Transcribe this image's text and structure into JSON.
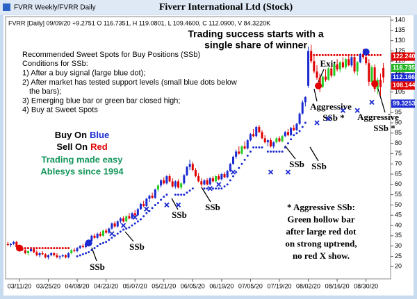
{
  "window_title": "FVRR Weekly/FVRR Daily",
  "chart_data": {
    "type": "candlestick",
    "title": "Fiverr International Ltd (Stock)",
    "info": "FVRR [Daily] 09/09/20 +9.2751 O 116.7351, H 119.0801, L 109.4600, C 112.0900, V 84.3220K",
    "headline": [
      "Trading success starts with a",
      "single share of winner"
    ],
    "conditions": [
      "Recommended Sweet Spots for Buy Positions (SSb)",
      "Conditions for SSb:",
      "1) After a buy signal (large blue dot);",
      "2) After market has tested support levels (small blue dots below",
      "the bars);",
      "3) Emerging blue bar or green bar closed high;",
      "4) Buy at Sweet Spots"
    ],
    "slogan": {
      "buy": "Buy On",
      "buy_word": "Blue",
      "sell": "Sell On",
      "sell_word": "Red",
      "lines": [
        "Trading made easy",
        "Ablesys since 1994"
      ]
    },
    "annotations": [
      "SSb",
      "SSb",
      "SSb",
      "SSb",
      "SSb",
      "SSb",
      "Exit",
      "Aggressive",
      "SSb *",
      "Aggressive",
      "SSb *"
    ],
    "note": [
      "* Aggressive SSb:",
      "Green hollow bar",
      "after large red dot",
      "on strong uptrend,",
      "no red X show."
    ],
    "up_color": "#1a2ad0",
    "down_color": "#e00000",
    "highlight_color": "#22cc22",
    "green_bars": [
      7,
      22,
      33,
      41,
      52,
      60,
      72,
      81,
      93,
      95,
      109,
      111,
      113,
      115,
      117,
      121,
      126,
      128
    ],
    "ohlc": [
      [
        31,
        32,
        30,
        30.5
      ],
      [
        30.5,
        31.5,
        29.5,
        31
      ],
      [
        31,
        32.5,
        30.5,
        32
      ],
      [
        32,
        32.5,
        29,
        29.5
      ],
      [
        29.5,
        30.5,
        28,
        29
      ],
      [
        29,
        30,
        27.5,
        28
      ],
      [
        28,
        29,
        26,
        26.5
      ],
      [
        26.5,
        28,
        25.5,
        27.5
      ],
      [
        27.5,
        29,
        27,
        28.5
      ],
      [
        28.5,
        29,
        26.5,
        27
      ],
      [
        27,
        28,
        25,
        25.5
      ],
      [
        25.5,
        27,
        24.5,
        26.5
      ],
      [
        26.5,
        27.5,
        25.5,
        26
      ],
      [
        26,
        26.5,
        24,
        24.5
      ],
      [
        24.5,
        26,
        23.5,
        25.5
      ],
      [
        25.5,
        27,
        25,
        26.5
      ],
      [
        26.5,
        27,
        25,
        25.5
      ],
      [
        25.5,
        26.5,
        24,
        24.5
      ],
      [
        24.5,
        25.5,
        23.5,
        25
      ],
      [
        25,
        26,
        24.5,
        25.5
      ],
      [
        25.5,
        26,
        24,
        24.5
      ],
      [
        24.5,
        27,
        24,
        26.5
      ],
      [
        26.5,
        28.5,
        26,
        28
      ],
      [
        28,
        29,
        27,
        27.5
      ],
      [
        27.5,
        29.5,
        27,
        29
      ],
      [
        29,
        30.5,
        28.5,
        30
      ],
      [
        30,
        31,
        29,
        29.5
      ],
      [
        29.5,
        32,
        29,
        31.5
      ],
      [
        31.5,
        33,
        31,
        32.5
      ],
      [
        32.5,
        35.5,
        32,
        35
      ],
      [
        35,
        36,
        33.5,
        34
      ],
      [
        34,
        36.5,
        33.5,
        36
      ],
      [
        36,
        37,
        34.5,
        35
      ],
      [
        35,
        38,
        34.5,
        37.5
      ],
      [
        37.5,
        38.5,
        36,
        36.5
      ],
      [
        36.5,
        39,
        36,
        38.5
      ],
      [
        38.5,
        41.5,
        38,
        41
      ],
      [
        41,
        42,
        39,
        39.5
      ],
      [
        39.5,
        42.5,
        39,
        42
      ],
      [
        42,
        44,
        41,
        43.5
      ],
      [
        43.5,
        44.5,
        41.5,
        42
      ],
      [
        42,
        45,
        41.5,
        44.5
      ],
      [
        44.5,
        46,
        43,
        43.5
      ],
      [
        43.5,
        46.5,
        43,
        46
      ],
      [
        46,
        47.5,
        44.5,
        45
      ],
      [
        45,
        48.5,
        44.5,
        48
      ],
      [
        48,
        51,
        47.5,
        50.5
      ],
      [
        50.5,
        52,
        49,
        49.5
      ],
      [
        49.5,
        53.5,
        49,
        53
      ],
      [
        53,
        55,
        51.5,
        54.5
      ],
      [
        54.5,
        56,
        53,
        53.5
      ],
      [
        53.5,
        58,
        53,
        57.5
      ],
      [
        57.5,
        60,
        56.5,
        59.5
      ],
      [
        59.5,
        62.5,
        58.5,
        62
      ],
      [
        62,
        63.5,
        60,
        60.5
      ],
      [
        60.5,
        64.5,
        60,
        64
      ],
      [
        64,
        65,
        61,
        61.5
      ],
      [
        61.5,
        63,
        58.5,
        59
      ],
      [
        59,
        62,
        58,
        61.5
      ],
      [
        61.5,
        62.5,
        58,
        58.5
      ],
      [
        58.5,
        61,
        57.5,
        60.5
      ],
      [
        60.5,
        65,
        60,
        64.5
      ],
      [
        64.5,
        69,
        64,
        68.5
      ],
      [
        68.5,
        72,
        67,
        70
      ],
      [
        70,
        71,
        66.5,
        67
      ],
      [
        67,
        68,
        63.5,
        64
      ],
      [
        64,
        65.5,
        61,
        61.5
      ],
      [
        61.5,
        63,
        59,
        60
      ],
      [
        60,
        62.5,
        59.5,
        62
      ],
      [
        62,
        63,
        59.5,
        60
      ],
      [
        60,
        63.5,
        59.5,
        63
      ],
      [
        63,
        64,
        61,
        61.5
      ],
      [
        61.5,
        64.5,
        61,
        64
      ],
      [
        64,
        65,
        62,
        62.5
      ],
      [
        62.5,
        65.5,
        62,
        65
      ],
      [
        65,
        66,
        63,
        63.5
      ],
      [
        63.5,
        67,
        63,
        66.5
      ],
      [
        66.5,
        70.5,
        66,
        70
      ],
      [
        70,
        74,
        69.5,
        73.5
      ],
      [
        73.5,
        77,
        72.5,
        76
      ],
      [
        76,
        78.5,
        74.5,
        75
      ],
      [
        75,
        79,
        74.5,
        78.5
      ],
      [
        78.5,
        81,
        77,
        77.5
      ],
      [
        77.5,
        82,
        77,
        81.5
      ],
      [
        81.5,
        85,
        81,
        84.5
      ],
      [
        84.5,
        87,
        83,
        83.5
      ],
      [
        83.5,
        88.5,
        83,
        88
      ],
      [
        88,
        89,
        85,
        85.5
      ],
      [
        85.5,
        86.5,
        82,
        82.5
      ],
      [
        82.5,
        84,
        80,
        80.5
      ],
      [
        80.5,
        82,
        78.5,
        81.5
      ],
      [
        81.5,
        82.5,
        78,
        78.5
      ],
      [
        78.5,
        81,
        77.5,
        80.5
      ],
      [
        80.5,
        83,
        80,
        82.5
      ],
      [
        82.5,
        83.5,
        80.5,
        81
      ],
      [
        81,
        84,
        80.5,
        83.5
      ],
      [
        83.5,
        86,
        83,
        85.5
      ],
      [
        85.5,
        87,
        83.5,
        84
      ],
      [
        84,
        88,
        83.5,
        87.5
      ],
      [
        87.5,
        89,
        86,
        86.5
      ],
      [
        86.5,
        90,
        86,
        89.5
      ],
      [
        89.5,
        95,
        89,
        94.5
      ],
      [
        94.5,
        101,
        94,
        100
      ],
      [
        100,
        103,
        98,
        102.5
      ],
      [
        108,
        127,
        107,
        125
      ],
      [
        125,
        128,
        119,
        120
      ],
      [
        120,
        123,
        114,
        115
      ],
      [
        115,
        118,
        111,
        112
      ],
      [
        112,
        114,
        105,
        107.5
      ],
      [
        107.5,
        113,
        107,
        112.5
      ],
      [
        112.5,
        116,
        110,
        111
      ],
      [
        111,
        117,
        110.5,
        116.5
      ],
      [
        116.5,
        118,
        112,
        113
      ],
      [
        113,
        119,
        112.5,
        118.5
      ],
      [
        118.5,
        121,
        115,
        116
      ],
      [
        116,
        120,
        114.5,
        119.5
      ],
      [
        119.5,
        122,
        116.5,
        117
      ],
      [
        117,
        121.5,
        116,
        121
      ],
      [
        121,
        123,
        117.5,
        118
      ],
      [
        118,
        122.5,
        117,
        122
      ],
      [
        122,
        123,
        114,
        115
      ],
      [
        115,
        120,
        113,
        119.5
      ],
      [
        119.5,
        124,
        119,
        123.5
      ],
      [
        123.5,
        126,
        121,
        122
      ],
      [
        122,
        125,
        118,
        119
      ],
      [
        119,
        121,
        108,
        110
      ],
      [
        110,
        118,
        109,
        117
      ],
      [
        117,
        118.5,
        105,
        106.5
      ],
      [
        106.5,
        112,
        104,
        111
      ],
      [
        111,
        114,
        103,
        107.5
      ],
      [
        116.7351,
        119.0801,
        109.46,
        112.09
      ]
    ],
    "support": {
      "color": "#1a2ad0",
      "values": [
        null,
        null,
        null,
        null,
        null,
        null,
        null,
        null,
        null,
        null,
        null,
        null,
        null,
        null,
        null,
        null,
        null,
        null,
        null,
        null,
        null,
        null,
        null,
        null,
        25,
        25.5,
        26,
        26.5,
        27,
        28,
        29,
        30,
        31,
        31.5,
        32,
        33,
        34,
        35,
        36,
        37,
        38,
        38.5,
        39,
        40,
        41,
        42,
        43,
        44.5,
        46,
        47,
        48.5,
        50,
        51,
        52.5,
        54,
        55,
        null,
        null,
        55,
        55,
        55,
        55,
        56,
        57,
        58,
        null,
        null,
        null,
        58,
        58,
        58,
        58,
        58,
        58,
        58,
        59,
        60,
        62,
        64,
        66,
        68,
        70,
        72,
        74,
        76,
        78,
        78,
        78,
        78,
        null,
        76,
        76,
        76,
        76,
        76,
        76,
        78,
        80,
        82,
        84,
        85,
        86,
        88,
        90,
        null,
        null,
        null,
        null,
        null,
        null,
        null,
        null,
        null,
        null,
        null,
        null,
        null,
        null,
        null,
        null,
        null,
        null,
        null,
        null,
        null,
        null,
        null,
        null,
        null,
        null,
        null
      ]
    },
    "resistance": {
      "color": "#e00000",
      "values": [
        null,
        null,
        null,
        null,
        29,
        29,
        29,
        29,
        29,
        29,
        29,
        29,
        29,
        29,
        29,
        29,
        29,
        29,
        29,
        29,
        29,
        29,
        null,
        null,
        null,
        null,
        null,
        null,
        null,
        null,
        null,
        null,
        null,
        null,
        null,
        null,
        null,
        null,
        null,
        null,
        null,
        null,
        null,
        null,
        null,
        null,
        null,
        null,
        null,
        null,
        null,
        null,
        null,
        null,
        null,
        null,
        null,
        null,
        null,
        null,
        null,
        null,
        null,
        null,
        null,
        null,
        null,
        null,
        null,
        null,
        null,
        null,
        null,
        null,
        null,
        null,
        null,
        null,
        null,
        null,
        null,
        null,
        null,
        null,
        null,
        null,
        null,
        null,
        null,
        null,
        null,
        null,
        null,
        null,
        null,
        null,
        null,
        null,
        null,
        null,
        null,
        null,
        null,
        null,
        123,
        123,
        123,
        123,
        123,
        123,
        123,
        123,
        123,
        123,
        123,
        123,
        123,
        123,
        123,
        123,
        123,
        123,
        123,
        123,
        123,
        123,
        123,
        123,
        123,
        123,
        null
      ]
    },
    "x_marks": {
      "color": "#1a2ad0",
      "x": [
        36,
        40,
        44,
        48,
        55,
        59,
        70,
        73,
        78,
        91,
        97,
        107,
        111,
        116,
        121,
        126
      ],
      "y": [
        36,
        40,
        44,
        48,
        50,
        50,
        58,
        60,
        66,
        66,
        66,
        90,
        92,
        96,
        96,
        100
      ]
    },
    "signal_dots": [
      {
        "x": 4,
        "y": 29,
        "color": "#e00000"
      },
      {
        "x": 28,
        "y": 31.5,
        "color": "#1a2ad0"
      },
      {
        "x": 107.5,
        "y": 108,
        "color": "#e00000"
      },
      {
        "x": 124,
        "y": 124.5,
        "color": "#1a2ad0"
      },
      {
        "x": 127,
        "y": 109,
        "color": "#e00000"
      }
    ],
    "price_labels": [
      {
        "value": 122.24,
        "label": "122.240",
        "color": "#e00000"
      },
      {
        "value": 116.735,
        "label": "116.735",
        "color": "#22b422"
      },
      {
        "value": 112.166,
        "label": "112.166",
        "color": "#1a2ad0"
      },
      {
        "value": 108.144,
        "label": "108.144",
        "color": "#e00000"
      },
      {
        "value": 99.3253,
        "label": "99.3253",
        "color": "#1a2ad0"
      }
    ],
    "ylim": [
      14,
      141.7
    ],
    "yticks": [
      140,
      135,
      130,
      125,
      120,
      115,
      110,
      105,
      100,
      95,
      90,
      85,
      80,
      75,
      70,
      65,
      60,
      55,
      50,
      45,
      40,
      35,
      30,
      25,
      20
    ],
    "xlim": [
      -0.8,
      132.5
    ],
    "xticks": [
      {
        "value": 4,
        "label": "03/11/20"
      },
      {
        "value": 14,
        "label": "03/25/20"
      },
      {
        "value": 24,
        "label": "04/08/20"
      },
      {
        "value": 34,
        "label": "04/23/20"
      },
      {
        "value": 44,
        "label": "05/07/20"
      },
      {
        "value": 54,
        "label": "05/21/20"
      },
      {
        "value": 64,
        "label": "06/05/20"
      },
      {
        "value": 74,
        "label": "06/19/20"
      },
      {
        "value": 84,
        "label": "07/05/20"
      },
      {
        "value": 94,
        "label": "07/19/20"
      },
      {
        "value": 104,
        "label": "08/02/20"
      },
      {
        "value": 114,
        "label": "08/16/20"
      },
      {
        "value": 124,
        "label": "08/30/20"
      }
    ]
  }
}
